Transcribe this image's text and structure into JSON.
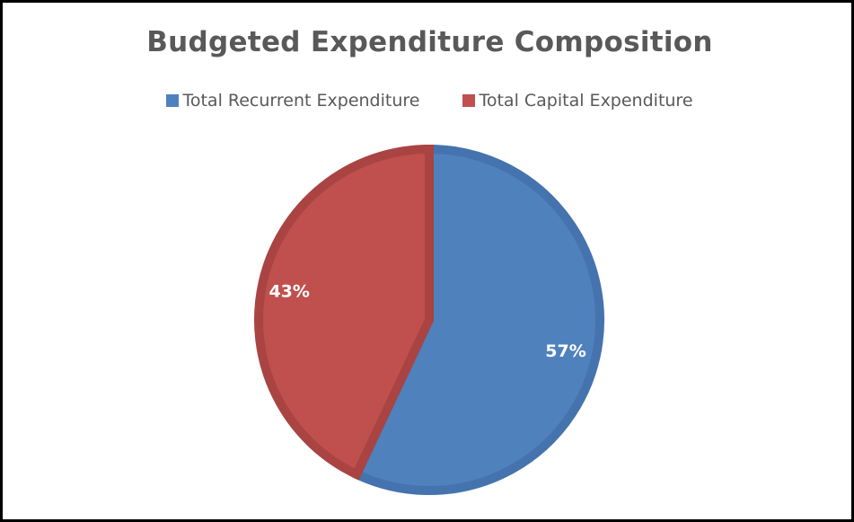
{
  "chart_data": {
    "type": "pie",
    "title": "Budgeted Expenditure Composition",
    "legend_position": "top",
    "categories": [
      "Total Recurrent Expenditure",
      "Total Capital Expenditure"
    ],
    "values": [
      57,
      43
    ],
    "data_labels": [
      "57%",
      "43%"
    ],
    "colors": [
      "#4f81bd",
      "#c0504d"
    ],
    "border_colors": [
      "#4573ad",
      "#a94442"
    ]
  }
}
